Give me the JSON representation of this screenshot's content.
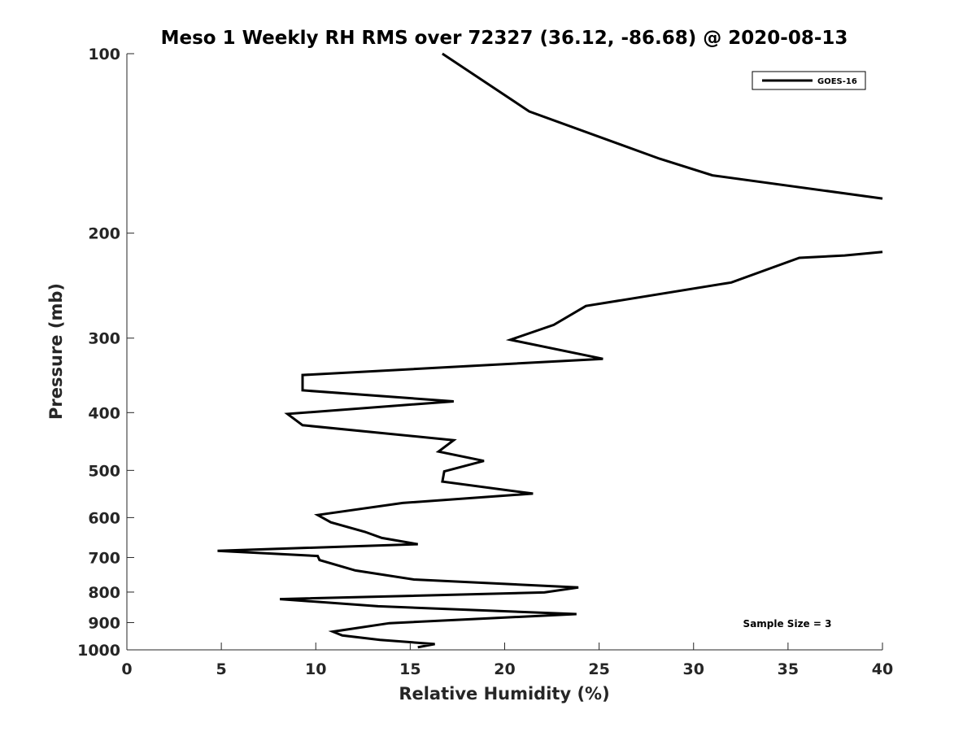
{
  "chart_data": {
    "type": "line",
    "title": "Meso 1 Weekly RH RMS over 72327 (36.12, -86.68) @ 2020-08-13",
    "xlabel": "Relative Humidity (%)",
    "ylabel": "Pressure (mb)",
    "xlim": [
      0,
      40
    ],
    "ylim": [
      100,
      1000
    ],
    "yscale": "log",
    "x_ticks": [
      0,
      5,
      10,
      15,
      20,
      25,
      30,
      35,
      40
    ],
    "y_ticks": [
      100,
      200,
      300,
      400,
      500,
      600,
      700,
      800,
      900,
      1000
    ],
    "legend_position": "top-right",
    "annotation": "Sample Size = 3",
    "colors": {
      "line": "#000000",
      "axis": "#262626"
    },
    "series": [
      {
        "name": "GOES-16",
        "points": [
          [
            16.7,
            100
          ],
          [
            21.3,
            125
          ],
          [
            28.2,
            150
          ],
          [
            31.0,
            160
          ],
          [
            40.0,
            175
          ],
          [
            null,
            190
          ],
          [
            40.0,
            215
          ],
          [
            38.0,
            218
          ],
          [
            35.6,
            220
          ],
          [
            32.0,
            242
          ],
          [
            24.3,
            265
          ],
          [
            22.6,
            285
          ],
          [
            20.3,
            302
          ],
          [
            25.2,
            325
          ],
          [
            9.3,
            346
          ],
          [
            9.3,
            367
          ],
          [
            17.3,
            383
          ],
          [
            8.5,
            402
          ],
          [
            9.3,
            420
          ],
          [
            17.3,
            445
          ],
          [
            16.5,
            465
          ],
          [
            18.9,
            482
          ],
          [
            16.8,
            502
          ],
          [
            16.7,
            522
          ],
          [
            21.5,
            547
          ],
          [
            14.6,
            567
          ],
          [
            10.1,
            594
          ],
          [
            10.8,
            611
          ],
          [
            12.6,
            634
          ],
          [
            13.5,
            649
          ],
          [
            15.4,
            665
          ],
          [
            4.8,
            682
          ],
          [
            10.1,
            696
          ],
          [
            10.2,
            707
          ],
          [
            12.1,
            736
          ],
          [
            15.2,
            762
          ],
          [
            23.9,
            786
          ],
          [
            22.1,
            801
          ],
          [
            8.1,
            822
          ],
          [
            13.3,
            845
          ],
          [
            23.8,
            871
          ],
          [
            13.9,
            902
          ],
          [
            10.9,
            932
          ],
          [
            11.4,
            946
          ],
          [
            13.4,
            962
          ],
          [
            16.3,
            978
          ],
          [
            15.4,
            990
          ]
        ]
      }
    ]
  }
}
